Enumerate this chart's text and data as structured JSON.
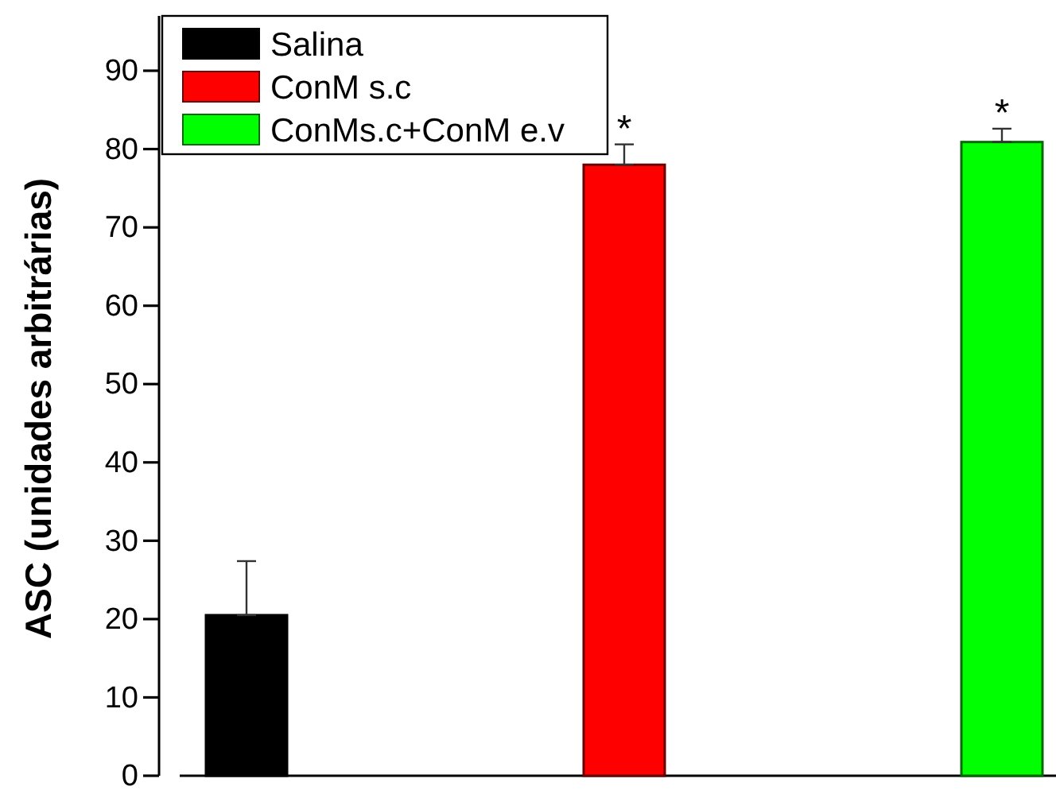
{
  "chart_data": {
    "type": "bar",
    "ylabel": "ASC (unidades arbitrárias)",
    "categories": [
      null,
      null,
      null
    ],
    "series": [
      {
        "name": "Salina",
        "color": "#000000",
        "values": [
          20.5,
          null,
          null
        ],
        "errors": [
          [
            20.5,
            27.4
          ],
          null,
          null
        ]
      },
      {
        "name": "ConM s.c",
        "color": "#ff0000",
        "values": [
          null,
          78.0,
          null
        ],
        "errors": [
          null,
          [
            78.0,
            80.6
          ],
          null
        ],
        "value_labels": [
          null,
          "*",
          null
        ]
      },
      {
        "name": "ConMs.c+ConM e.v",
        "color": "#00ff00",
        "values": [
          null,
          null,
          80.9
        ],
        "errors": [
          null,
          null,
          [
            80.9,
            82.6
          ]
        ],
        "value_labels": [
          null,
          null,
          "*"
        ]
      }
    ],
    "ylim": [
      0,
      97
    ],
    "yticks": [
      0,
      10,
      20,
      30,
      40,
      50,
      60,
      70,
      80,
      90
    ],
    "legend": "top left"
  }
}
